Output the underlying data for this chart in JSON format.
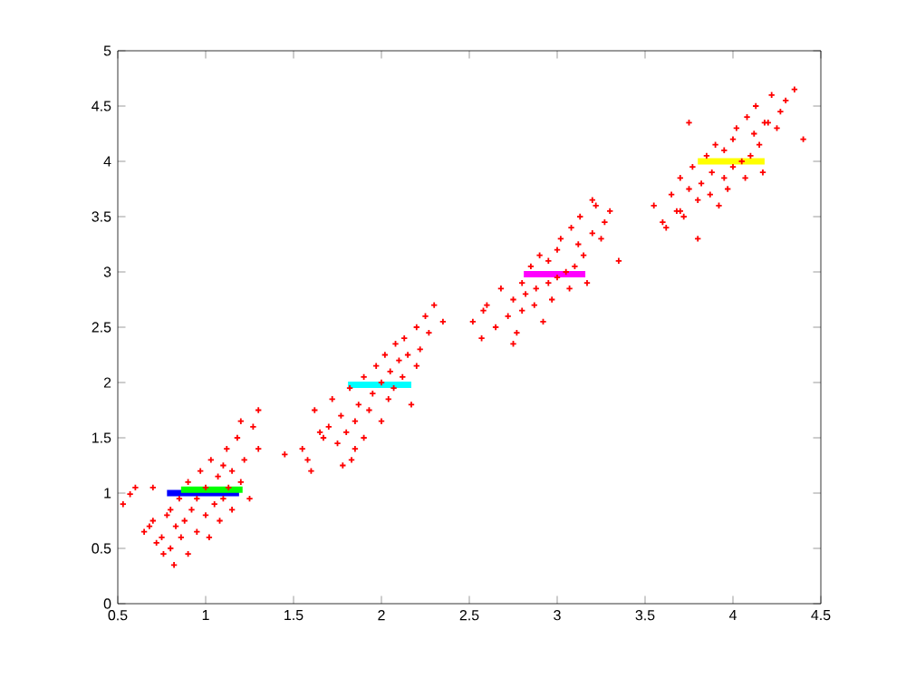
{
  "chart_data": {
    "type": "scatter",
    "marker": "cross",
    "grid": false,
    "xlim": [
      0.5,
      4.5
    ],
    "ylim": [
      0,
      5
    ],
    "xticks": [
      0.5,
      1,
      1.5,
      2,
      2.5,
      3,
      3.5,
      4,
      4.5
    ],
    "yticks": [
      0,
      0.5,
      1,
      1.5,
      2,
      2.5,
      3,
      3.5,
      4,
      4.5,
      5
    ],
    "series": [
      {
        "color": "#ff0000",
        "x": [
          0.53,
          0.6,
          0.65,
          0.68,
          0.7,
          0.72,
          0.75,
          0.76,
          0.78,
          0.8,
          0.8,
          0.82,
          0.83,
          0.85,
          0.86,
          0.88,
          0.9,
          0.9,
          0.92,
          0.95,
          0.95,
          0.97,
          1.0,
          1.0,
          1.02,
          1.03,
          1.05,
          1.07,
          1.08,
          1.1,
          1.1,
          1.12,
          1.13,
          1.15,
          1.15,
          1.18,
          1.2,
          1.22,
          1.25,
          1.27,
          1.3,
          1.3,
          1.2,
          0.7,
          0.57,
          1.45,
          1.55,
          1.6,
          1.65,
          1.58,
          1.62,
          1.67,
          1.7,
          1.72,
          1.75,
          1.77,
          1.8,
          1.82,
          1.83,
          1.85,
          1.87,
          1.9,
          1.9,
          1.93,
          1.95,
          1.97,
          2.0,
          2.0,
          2.02,
          2.04,
          2.05,
          2.07,
          2.08,
          2.1,
          2.12,
          2.13,
          2.15,
          2.17,
          2.2,
          2.22,
          2.25,
          2.27,
          2.3,
          2.2,
          1.85,
          1.78,
          2.35,
          2.52,
          2.57,
          2.6,
          2.65,
          2.68,
          2.72,
          2.75,
          2.77,
          2.8,
          2.8,
          2.82,
          2.85,
          2.87,
          2.88,
          2.9,
          2.92,
          2.95,
          2.95,
          2.97,
          3.0,
          3.0,
          3.02,
          3.05,
          3.07,
          3.08,
          3.1,
          3.12,
          3.13,
          3.15,
          3.17,
          3.2,
          3.22,
          3.25,
          3.27,
          3.3,
          3.2,
          2.75,
          2.58,
          3.35,
          3.55,
          3.6,
          3.65,
          3.68,
          3.7,
          3.72,
          3.75,
          3.77,
          3.8,
          3.8,
          3.82,
          3.85,
          3.87,
          3.88,
          3.9,
          3.92,
          3.95,
          3.95,
          3.97,
          4.0,
          4.0,
          4.02,
          4.05,
          4.07,
          4.08,
          4.1,
          4.12,
          4.13,
          4.15,
          4.17,
          4.2,
          4.22,
          4.25,
          4.27,
          4.3,
          4.35,
          4.4,
          3.75,
          3.62,
          4.18,
          3.7
        ],
        "values": [
          0.9,
          1.05,
          0.65,
          0.7,
          0.75,
          0.55,
          0.6,
          0.45,
          0.8,
          0.85,
          0.5,
          0.35,
          0.7,
          0.95,
          0.6,
          0.75,
          0.45,
          1.1,
          0.85,
          0.95,
          0.65,
          1.2,
          0.8,
          1.05,
          0.6,
          1.3,
          0.9,
          1.15,
          0.75,
          1.25,
          0.95,
          1.4,
          1.05,
          1.2,
          0.85,
          1.5,
          1.1,
          1.3,
          0.95,
          1.6,
          1.4,
          1.75,
          1.65,
          1.05,
          0.99,
          1.35,
          1.4,
          1.2,
          1.55,
          1.3,
          1.75,
          1.5,
          1.6,
          1.85,
          1.45,
          1.7,
          1.55,
          1.95,
          1.3,
          1.65,
          1.8,
          2.05,
          1.5,
          1.75,
          1.9,
          2.15,
          1.65,
          2.0,
          2.25,
          1.85,
          2.1,
          1.95,
          2.35,
          2.2,
          2.05,
          2.4,
          2.25,
          1.8,
          2.5,
          2.3,
          2.6,
          2.45,
          2.7,
          2.15,
          1.4,
          1.25,
          2.55,
          2.55,
          2.4,
          2.7,
          2.5,
          2.85,
          2.6,
          2.75,
          2.45,
          2.9,
          2.65,
          2.8,
          3.05,
          2.7,
          2.85,
          3.15,
          2.55,
          2.9,
          3.1,
          2.75,
          3.2,
          2.95,
          3.3,
          3.0,
          2.85,
          3.4,
          3.05,
          3.25,
          3.5,
          3.15,
          2.9,
          3.35,
          3.6,
          3.3,
          3.45,
          3.55,
          3.65,
          2.35,
          2.65,
          3.1,
          3.6,
          3.45,
          3.7,
          3.55,
          3.85,
          3.5,
          3.75,
          3.95,
          3.65,
          3.3,
          3.8,
          4.05,
          3.7,
          3.9,
          4.15,
          3.6,
          3.85,
          4.1,
          3.75,
          4.2,
          3.95,
          4.3,
          4.0,
          3.85,
          4.4,
          4.05,
          4.25,
          4.5,
          4.15,
          3.9,
          4.35,
          4.6,
          4.3,
          4.45,
          4.55,
          4.65,
          4.2,
          4.35,
          3.4,
          4.35,
          3.55
        ]
      },
      {
        "type": "line",
        "color": "#0000ff",
        "marker": "none",
        "x": [
          0.78,
          1.19
        ],
        "values": [
          1.0,
          1.0
        ]
      },
      {
        "type": "line",
        "color": "#00ff00",
        "marker": "none",
        "x": [
          0.86,
          1.21
        ],
        "values": [
          1.03,
          1.03
        ]
      },
      {
        "type": "line",
        "color": "#00ffff",
        "marker": "none",
        "x": [
          1.81,
          2.17
        ],
        "values": [
          1.98,
          1.98
        ]
      },
      {
        "type": "line",
        "color": "#ff00ff",
        "marker": "none",
        "x": [
          2.81,
          3.16
        ],
        "values": [
          2.98,
          2.98
        ]
      },
      {
        "type": "line",
        "color": "#ffff00",
        "marker": "none",
        "x": [
          3.8,
          4.18
        ],
        "values": [
          4.0,
          4.0
        ]
      }
    ]
  }
}
